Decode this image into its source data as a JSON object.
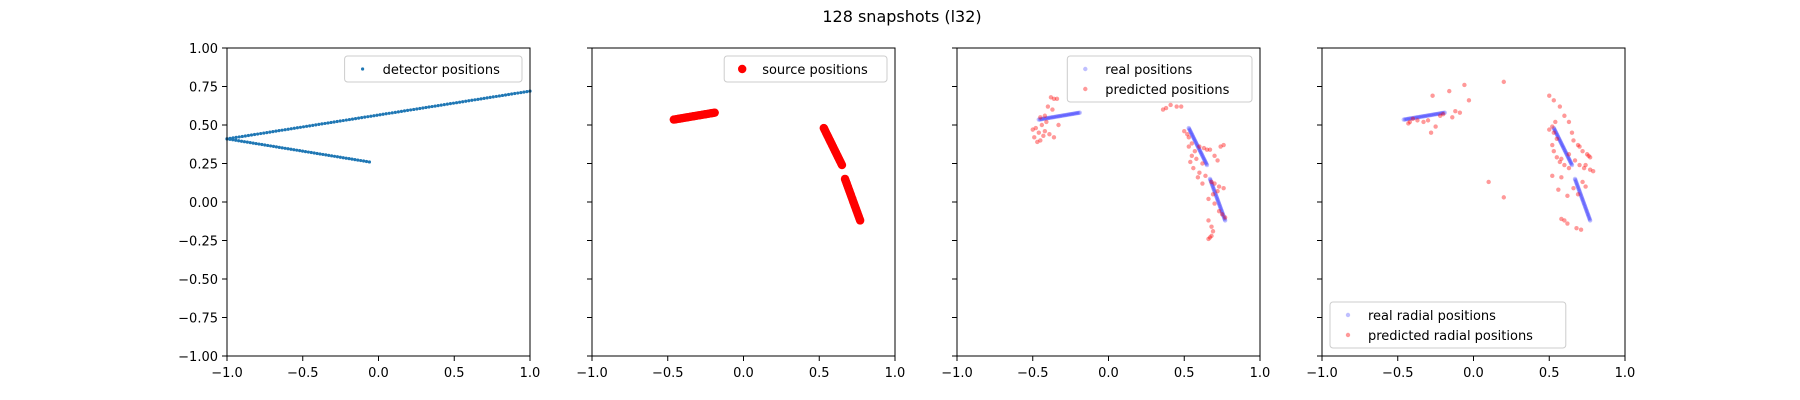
{
  "figure": {
    "title": "128 snapshots (l32)"
  },
  "chart_data": [
    {
      "type": "scatter",
      "title": "",
      "xlabel": "",
      "ylabel": "",
      "xlim": [
        -1.0,
        1.0
      ],
      "ylim": [
        -1.0,
        1.0
      ],
      "xticks": [
        "−1.0",
        "−0.5",
        "0.0",
        "0.5",
        "1.0"
      ],
      "yticks": [
        "−1.00",
        "−0.75",
        "−0.50",
        "−0.25",
        "0.00",
        "0.25",
        "0.50",
        "0.75",
        "1.00"
      ],
      "show_ytick_labels": true,
      "grid": false,
      "legend": "upper right",
      "series": [
        {
          "name": "detector positions",
          "color": "#1f77b4",
          "marker_size": 1.6,
          "opacity": 1.0,
          "segments": [
            {
              "from": [
                -1.0,
                0.41
              ],
              "to": [
                1.0,
                0.72
              ],
              "count": 100
            },
            {
              "from": [
                -1.0,
                0.41
              ],
              "to": [
                -0.06,
                0.26
              ],
              "count": 50
            }
          ]
        }
      ]
    },
    {
      "type": "scatter",
      "title": "",
      "xlabel": "",
      "ylabel": "",
      "xlim": [
        -1.0,
        1.0
      ],
      "ylim": [
        -1.0,
        1.0
      ],
      "xticks": [
        "−1.0",
        "−0.5",
        "0.0",
        "0.5",
        "1.0"
      ],
      "yticks": [
        "",
        "",
        "",
        "",
        "",
        "",
        "",
        "",
        ""
      ],
      "show_ytick_labels": false,
      "grid": false,
      "legend": "upper right",
      "series": [
        {
          "name": "source positions",
          "color": "#ff0000",
          "marker_size": 4.2,
          "opacity": 1.0,
          "segments": [
            {
              "from": [
                -0.46,
                0.535
              ],
              "to": [
                -0.19,
                0.58
              ],
              "count": 32
            },
            {
              "from": [
                0.53,
                0.48
              ],
              "to": [
                0.65,
                0.24
              ],
              "count": 32
            },
            {
              "from": [
                0.67,
                0.15
              ],
              "to": [
                0.77,
                -0.12
              ],
              "count": 32
            }
          ]
        }
      ]
    },
    {
      "type": "scatter",
      "title": "",
      "xlabel": "",
      "ylabel": "",
      "xlim": [
        -1.0,
        1.0
      ],
      "ylim": [
        -1.0,
        1.0
      ],
      "xticks": [
        "−1.0",
        "−0.5",
        "0.0",
        "0.5",
        "1.0"
      ],
      "yticks": [
        "",
        "",
        "",
        "",
        "",
        "",
        "",
        "",
        ""
      ],
      "show_ytick_labels": false,
      "grid": false,
      "legend": "upper right",
      "series": [
        {
          "name": "real positions",
          "color": "#0000ff",
          "marker_size": 2.2,
          "opacity": 0.25,
          "segments": [
            {
              "from": [
                -0.46,
                0.535
              ],
              "to": [
                -0.19,
                0.58
              ],
              "count": 32
            },
            {
              "from": [
                0.53,
                0.48
              ],
              "to": [
                0.65,
                0.24
              ],
              "count": 32
            },
            {
              "from": [
                0.67,
                0.15
              ],
              "to": [
                0.77,
                -0.12
              ],
              "count": 32
            }
          ]
        },
        {
          "name": "predicted positions",
          "color": "#ff0000",
          "marker_size": 2.2,
          "opacity": 0.4,
          "points": [
            [
              -0.38,
              0.68
            ],
            [
              -0.36,
              0.67
            ],
            [
              -0.34,
              0.67
            ],
            [
              -0.4,
              0.62
            ],
            [
              -0.37,
              0.6
            ],
            [
              -0.42,
              0.56
            ],
            [
              -0.45,
              0.55
            ],
            [
              -0.41,
              0.52
            ],
            [
              -0.44,
              0.5
            ],
            [
              -0.48,
              0.48
            ],
            [
              -0.5,
              0.47
            ],
            [
              -0.46,
              0.45
            ],
            [
              -0.43,
              0.43
            ],
            [
              -0.45,
              0.4
            ],
            [
              -0.47,
              0.39
            ],
            [
              -0.39,
              0.44
            ],
            [
              -0.36,
              0.42
            ],
            [
              -0.42,
              0.46
            ],
            [
              -0.33,
              0.5
            ],
            [
              -0.49,
              0.42
            ],
            [
              0.36,
              0.6
            ],
            [
              0.38,
              0.61
            ],
            [
              0.41,
              0.63
            ],
            [
              0.45,
              0.62
            ],
            [
              0.48,
              0.62
            ],
            [
              0.5,
              0.46
            ],
            [
              0.52,
              0.44
            ],
            [
              0.53,
              0.42
            ],
            [
              0.55,
              0.38
            ],
            [
              0.53,
              0.36
            ],
            [
              0.55,
              0.3
            ],
            [
              0.58,
              0.28
            ],
            [
              0.54,
              0.26
            ],
            [
              0.56,
              0.22
            ],
            [
              0.6,
              0.19
            ],
            [
              0.63,
              0.35
            ],
            [
              0.65,
              0.34
            ],
            [
              0.67,
              0.34
            ],
            [
              0.7,
              0.3
            ],
            [
              0.72,
              0.27
            ],
            [
              0.74,
              0.36
            ],
            [
              0.76,
              0.37
            ],
            [
              0.62,
              0.25
            ],
            [
              0.64,
              0.17
            ],
            [
              0.68,
              0.13
            ],
            [
              0.7,
              0.12
            ],
            [
              0.73,
              0.1
            ],
            [
              0.76,
              0.09
            ],
            [
              0.72,
              0.07
            ],
            [
              0.69,
              0.05
            ],
            [
              0.66,
              0.02
            ],
            [
              0.7,
              -0.01
            ],
            [
              0.73,
              -0.06
            ],
            [
              0.75,
              -0.08
            ],
            [
              0.77,
              -0.1
            ],
            [
              0.66,
              -0.12
            ],
            [
              0.68,
              -0.16
            ],
            [
              0.69,
              -0.19
            ],
            [
              0.68,
              -0.22
            ],
            [
              0.66,
              -0.24
            ],
            [
              0.67,
              -0.23
            ],
            [
              0.59,
              0.16
            ],
            [
              0.62,
              0.12
            ],
            [
              0.57,
              0.33
            ],
            [
              0.6,
              0.36
            ]
          ]
        }
      ]
    },
    {
      "type": "scatter",
      "title": "",
      "xlabel": "",
      "ylabel": "",
      "xlim": [
        -1.0,
        1.0
      ],
      "ylim": [
        -1.0,
        1.0
      ],
      "xticks": [
        "−1.0",
        "−0.5",
        "0.0",
        "0.5",
        "1.0"
      ],
      "yticks": [
        "",
        "",
        "",
        "",
        "",
        "",
        "",
        "",
        ""
      ],
      "show_ytick_labels": false,
      "grid": false,
      "legend": "lower left",
      "series": [
        {
          "name": "real radial positions",
          "color": "#0000ff",
          "marker_size": 2.2,
          "opacity": 0.25,
          "segments": [
            {
              "from": [
                -0.46,
                0.535
              ],
              "to": [
                -0.19,
                0.58
              ],
              "count": 32
            },
            {
              "from": [
                0.53,
                0.48
              ],
              "to": [
                0.65,
                0.24
              ],
              "count": 32
            },
            {
              "from": [
                0.67,
                0.15
              ],
              "to": [
                0.77,
                -0.12
              ],
              "count": 32
            }
          ]
        },
        {
          "name": "predicted radial positions",
          "color": "#ff0000",
          "marker_size": 2.2,
          "opacity": 0.4,
          "points": [
            [
              -0.27,
              0.69
            ],
            [
              -0.16,
              0.72
            ],
            [
              -0.06,
              0.76
            ],
            [
              0.2,
              0.78
            ],
            [
              -0.12,
              0.59
            ],
            [
              -0.2,
              0.57
            ],
            [
              -0.14,
              0.55
            ],
            [
              -0.3,
              0.53
            ],
            [
              -0.33,
              0.52
            ],
            [
              -0.37,
              0.53
            ],
            [
              -0.4,
              0.54
            ],
            [
              -0.42,
              0.52
            ],
            [
              -0.43,
              0.51
            ],
            [
              -0.28,
              0.45
            ],
            [
              -0.25,
              0.49
            ],
            [
              -0.22,
              0.56
            ],
            [
              -0.09,
              0.58
            ],
            [
              -0.03,
              0.66
            ],
            [
              0.5,
              0.69
            ],
            [
              0.53,
              0.66
            ],
            [
              0.57,
              0.62
            ],
            [
              0.6,
              0.56
            ],
            [
              0.63,
              0.52
            ],
            [
              0.52,
              0.49
            ],
            [
              0.5,
              0.47
            ],
            [
              0.53,
              0.45
            ],
            [
              0.55,
              0.41
            ],
            [
              0.52,
              0.37
            ],
            [
              0.53,
              0.33
            ],
            [
              0.55,
              0.29
            ],
            [
              0.57,
              0.26
            ],
            [
              0.6,
              0.24
            ],
            [
              0.63,
              0.22
            ],
            [
              0.66,
              0.4
            ],
            [
              0.69,
              0.37
            ],
            [
              0.72,
              0.33
            ],
            [
              0.75,
              0.31
            ],
            [
              0.77,
              0.29
            ],
            [
              0.7,
              0.24
            ],
            [
              0.74,
              0.24
            ],
            [
              0.77,
              0.21
            ],
            [
              0.79,
              0.2
            ],
            [
              0.72,
              0.13
            ],
            [
              0.74,
              0.1
            ],
            [
              0.69,
              0.05
            ],
            [
              0.58,
              0.16
            ],
            [
              0.52,
              0.17
            ],
            [
              0.56,
              0.08
            ],
            [
              0.58,
              -0.11
            ],
            [
              0.6,
              -0.12
            ],
            [
              0.62,
              -0.14
            ],
            [
              0.68,
              -0.17
            ],
            [
              0.71,
              -0.18
            ],
            [
              0.62,
              0.04
            ],
            [
              0.67,
              0.27
            ],
            [
              0.63,
              0.31
            ],
            [
              0.1,
              0.13
            ],
            [
              0.2,
              0.03
            ],
            [
              0.65,
              0.45
            ],
            [
              0.7,
              0.36
            ],
            [
              0.54,
              0.52
            ],
            [
              0.58,
              0.28
            ],
            [
              0.76,
              0.3
            ],
            [
              0.73,
              0.22
            ],
            [
              0.66,
              0.09
            ]
          ]
        }
      ]
    }
  ]
}
